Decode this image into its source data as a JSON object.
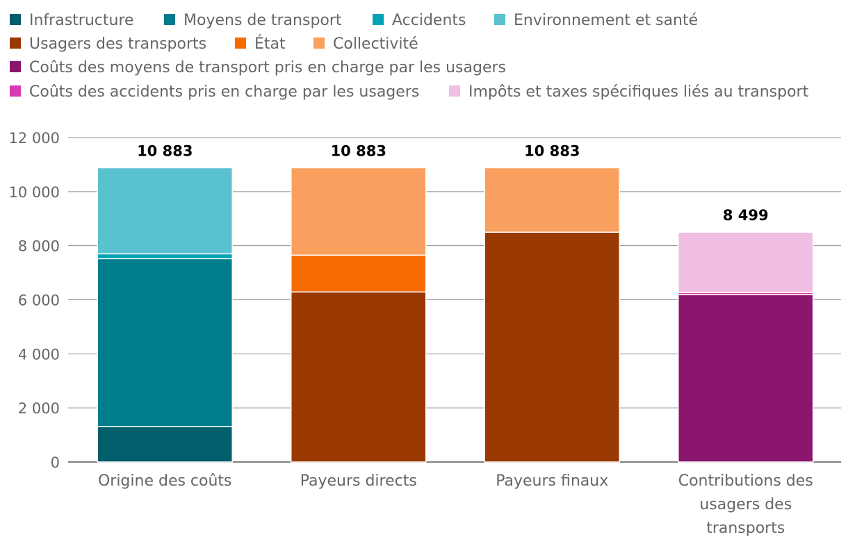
{
  "chart_data": {
    "type": "bar",
    "stacked": true,
    "title": "",
    "xlabel": "",
    "ylabel": "",
    "ylim": [
      0,
      12000
    ],
    "yticks": [
      0,
      2000,
      4000,
      6000,
      8000,
      10000,
      12000
    ],
    "ytick_labels": [
      "0",
      "2 000",
      "4 000",
      "6 000",
      "8 000",
      "10 000",
      "12 000"
    ],
    "grid": true,
    "legend_position": "top",
    "categories": [
      [
        "Origine des coûts"
      ],
      [
        "Payeurs directs"
      ],
      [
        "Payeurs finaux"
      ],
      [
        "Contributions des",
        "usagers des",
        "transports"
      ]
    ],
    "totals": [
      10883,
      10883,
      10883,
      8499
    ],
    "total_labels": [
      "10 883",
      "10 883",
      "10 883",
      "8 499"
    ],
    "series": [
      {
        "name": "Infrastructure",
        "color": "#005f6a",
        "values": [
          1310,
          0,
          0,
          0
        ]
      },
      {
        "name": "Moyens de transport",
        "color": "#007d8c",
        "values": [
          6210,
          0,
          0,
          0
        ]
      },
      {
        "name": "Accidents",
        "color": "#00a3b4",
        "values": [
          180,
          0,
          0,
          0
        ]
      },
      {
        "name": "Environnement et santé",
        "color": "#5ac1cf",
        "values": [
          3183,
          0,
          0,
          0
        ]
      },
      {
        "name": "Usagers des transports",
        "color": "#993800",
        "values": [
          0,
          6290,
          8500,
          0
        ]
      },
      {
        "name": "État",
        "color": "#f56b00",
        "values": [
          0,
          1360,
          0,
          0
        ]
      },
      {
        "name": "Collectivité",
        "color": "#f9a05e",
        "values": [
          0,
          3233,
          2383,
          0
        ]
      },
      {
        "name": "Coûts des moyens de transport pris en charge par les usagers",
        "color": "#8a166e",
        "values": [
          0,
          0,
          0,
          6190
        ]
      },
      {
        "name": "Coûts des accidents pris en charge par les usagers",
        "color": "#d63caf",
        "values": [
          0,
          0,
          0,
          80
        ]
      },
      {
        "name": "Impôts et taxes spécifiques liés au transport",
        "color": "#f0bde3",
        "values": [
          0,
          0,
          0,
          2229
        ]
      }
    ]
  }
}
